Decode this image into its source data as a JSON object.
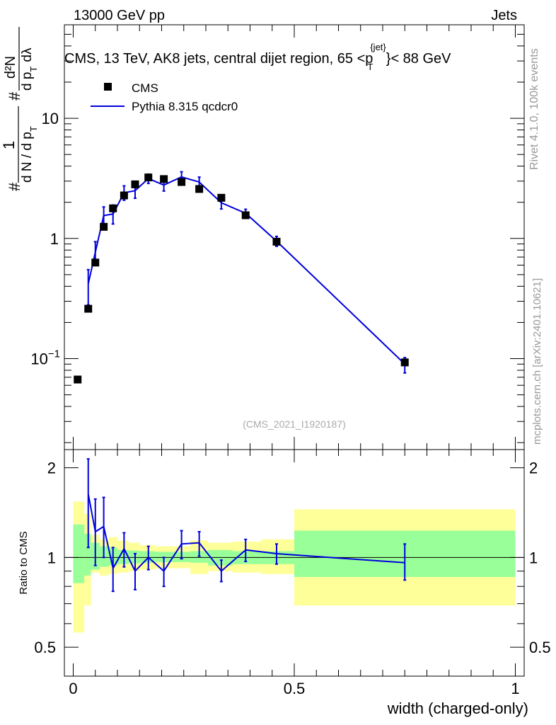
{
  "header": {
    "left": "13000 GeV pp",
    "right": "Jets"
  },
  "side_texts": {
    "rivet": "Rivet 4.1.0,  100k events",
    "mcplots": "mcplots.cern.ch [arXiv:2401.10621]"
  },
  "chart_data": [
    {
      "type": "scatter",
      "panel": "main",
      "title": "CMS, 13 TeV, AK8 jets, central dijet region, 65 < p_T^{jet} < 88 GeV",
      "title_parts": {
        "pre": "CMS, 13 TeV, AK8 jets, central dijet region, 65 <",
        "p": "p",
        "sub": "T",
        "sup": "{jet}",
        "post": "}< 88 GeV"
      },
      "ylabel": "1/(dN/dp_T) d²N/(dp_T dλ)",
      "ylabel_parts": {
        "n1": "1",
        "d1": "d N / d p",
        "d1sub": "T",
        "hash": "#",
        "n2": "d²N",
        "d2": "d p",
        "d2sub": "T",
        "d2post": "dλ"
      },
      "yscale": "log",
      "ylim": [
        0.0175,
        60
      ],
      "xlim": [
        -0.02,
        1.02
      ],
      "yticks": [
        {
          "label_base": "10",
          "label_exp": "−1",
          "value": 0.1
        },
        {
          "label": "1",
          "value": 1
        },
        {
          "label": "10",
          "value": 10
        }
      ],
      "watermark": "(CMS_2021_I1920187)",
      "legend_position": "top-left",
      "series": [
        {
          "name": "CMS",
          "style": "black-square-markers",
          "x": [
            0.01,
            0.034,
            0.05,
            0.069,
            0.09,
            0.115,
            0.14,
            0.17,
            0.205,
            0.245,
            0.285,
            0.335,
            0.39,
            0.46,
            0.75
          ],
          "y": [
            0.067,
            0.26,
            0.63,
            1.25,
            1.78,
            2.28,
            2.82,
            3.22,
            3.12,
            2.95,
            2.58,
            2.18,
            1.56,
            0.94,
            0.093
          ]
        },
        {
          "name": "Pythia 8.315 qcdcr0",
          "style": "blue-line-errorbars",
          "color": "#0000dd",
          "x": [
            0.034,
            0.05,
            0.069,
            0.09,
            0.115,
            0.14,
            0.17,
            0.205,
            0.245,
            0.285,
            0.335,
            0.39,
            0.46,
            0.75
          ],
          "y": [
            0.42,
            0.77,
            1.55,
            1.6,
            2.4,
            2.5,
            3.15,
            2.78,
            3.25,
            2.95,
            1.98,
            1.62,
            0.95,
            0.09
          ],
          "yerr_low": [
            0.14,
            0.15,
            0.3,
            0.28,
            0.32,
            0.34,
            0.28,
            0.3,
            0.33,
            0.3,
            0.22,
            0.13,
            0.09,
            0.014
          ],
          "yerr_high": [
            0.13,
            0.17,
            0.28,
            0.3,
            0.34,
            0.35,
            0.28,
            0.3,
            0.34,
            0.29,
            0.22,
            0.13,
            0.09,
            0.012
          ]
        }
      ]
    },
    {
      "type": "line",
      "panel": "ratio",
      "ylabel": "Ratio to CMS",
      "xlabel": "width (charged-only)",
      "xlim": [
        -0.02,
        1.02
      ],
      "ylim": [
        0.4,
        2.3
      ],
      "yscale": "log",
      "xticks": [
        {
          "label": "0",
          "value": 0
        },
        {
          "label": "0.5",
          "value": 0.5
        },
        {
          "label": "1",
          "value": 1
        }
      ],
      "yticks": [
        {
          "label": "0.5",
          "value": 0.5
        },
        {
          "label": "1",
          "value": 1
        },
        {
          "label": "2",
          "value": 2
        }
      ],
      "bands": {
        "bin_edges": [
          0,
          0.025,
          0.04,
          0.06,
          0.08,
          0.1,
          0.125,
          0.15,
          0.185,
          0.22,
          0.265,
          0.305,
          0.36,
          0.425,
          0.5,
          1.0
        ],
        "green_low": [
          0.82,
          0.87,
          0.91,
          0.93,
          0.94,
          0.95,
          0.955,
          0.96,
          0.965,
          0.965,
          0.96,
          0.94,
          0.95,
          0.95,
          0.86
        ],
        "green_high": [
          1.29,
          1.2,
          1.12,
          1.09,
          1.08,
          1.06,
          1.055,
          1.05,
          1.045,
          1.045,
          1.05,
          1.06,
          1.05,
          1.05,
          1.23
        ],
        "yellow_low": [
          0.56,
          0.69,
          0.89,
          0.87,
          0.88,
          0.89,
          0.9,
          0.91,
          0.92,
          0.92,
          0.88,
          0.9,
          0.89,
          0.88,
          0.69
        ],
        "yellow_high": [
          1.54,
          1.4,
          1.19,
          1.15,
          1.17,
          1.14,
          1.12,
          1.1,
          1.09,
          1.09,
          1.14,
          1.12,
          1.13,
          1.15,
          1.45
        ]
      },
      "series": [
        {
          "name": "Pythia 8.315 qcdcr0 / CMS",
          "color": "#0000dd",
          "x": [
            0.034,
            0.05,
            0.069,
            0.09,
            0.115,
            0.14,
            0.17,
            0.205,
            0.245,
            0.285,
            0.335,
            0.39,
            0.46,
            0.75
          ],
          "y": [
            1.63,
            1.22,
            1.27,
            0.92,
            1.07,
            0.9,
            1.0,
            0.9,
            1.11,
            1.12,
            0.9,
            1.06,
            1.03,
            0.96
          ],
          "yerr_low": [
            0.55,
            0.28,
            0.27,
            0.15,
            0.14,
            0.12,
            0.09,
            0.1,
            0.12,
            0.11,
            0.07,
            0.09,
            0.08,
            0.12
          ],
          "yerr_high": [
            0.51,
            0.35,
            0.32,
            0.16,
            0.14,
            0.13,
            0.09,
            0.1,
            0.12,
            0.1,
            0.08,
            0.09,
            0.08,
            0.15
          ]
        }
      ]
    }
  ]
}
